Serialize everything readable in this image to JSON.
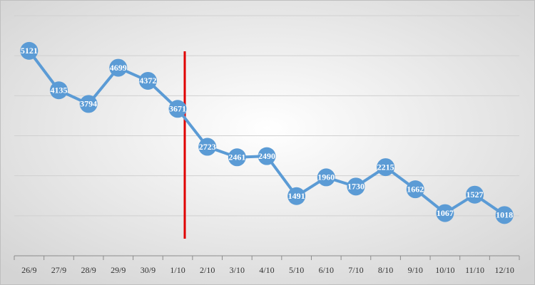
{
  "chart_data": {
    "type": "line",
    "categories": [
      "26/9",
      "27/9",
      "28/9",
      "29/9",
      "30/9",
      "1/10",
      "2/10",
      "3/10",
      "4/10",
      "5/10",
      "6/10",
      "7/10",
      "8/10",
      "9/10",
      "10/10",
      "11/10",
      "12/10"
    ],
    "values": [
      5121,
      4135,
      3794,
      4699,
      4372,
      3671,
      2723,
      2461,
      2490,
      1491,
      1960,
      1730,
      2215,
      1662,
      1067,
      1527,
      1018
    ],
    "color": "#5b9bd5",
    "ylim": [
      0,
      6000
    ],
    "yticks": [
      0,
      1000,
      2000,
      3000,
      4000,
      5000,
      6000
    ],
    "grid": true
  }
}
